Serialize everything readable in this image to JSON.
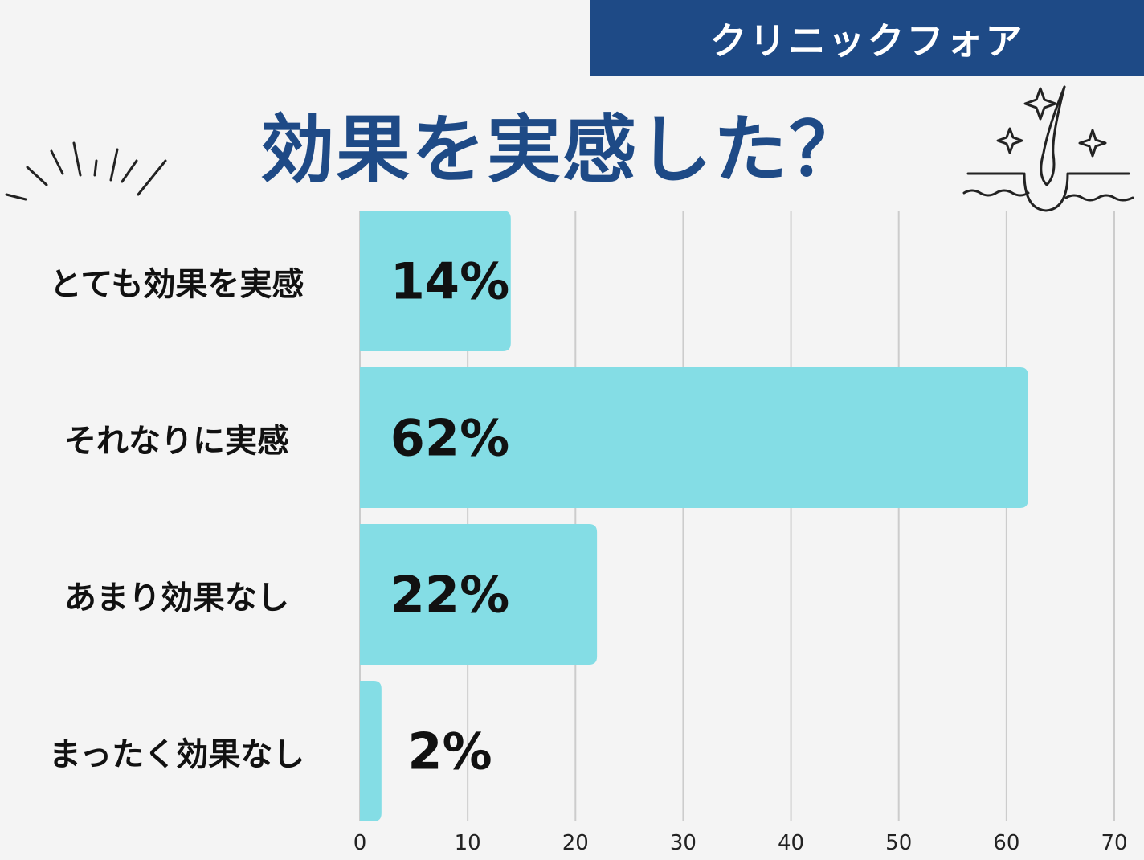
{
  "brand": "クリニックフォア",
  "chart_data": {
    "type": "bar",
    "orientation": "horizontal",
    "title": "効果を実感した？",
    "categories": [
      "とても効果を実感",
      "それなりに実感",
      "あまり効果なし",
      "まったく効果なし"
    ],
    "values": [
      14,
      62,
      22,
      2
    ],
    "value_labels": [
      "14%",
      "62%",
      "22%",
      "2%"
    ],
    "xlim": [
      0,
      70
    ],
    "xticks": [
      0,
      10,
      20,
      30,
      40,
      50,
      60,
      70
    ],
    "grid": true,
    "bar_color": "#84dde5",
    "grid_color": "#cccccc"
  },
  "colors": {
    "accent": "#1e4a86",
    "background": "#f4f4f4",
    "bar": "#84dde5"
  },
  "icons": [
    "burst-lines-icon",
    "hair-follicle-sparkle-icon"
  ]
}
